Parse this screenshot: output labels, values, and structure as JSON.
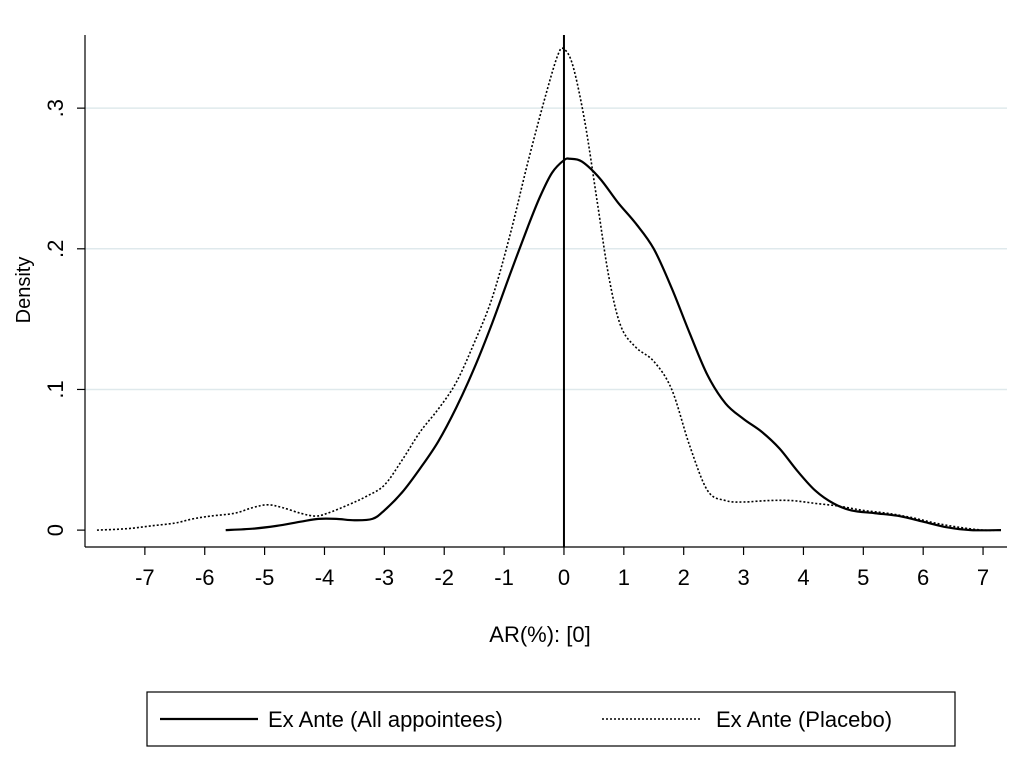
{
  "chart_data": {
    "type": "line",
    "title": "",
    "xlabel": "AR(%): [0]",
    "ylabel": "Density",
    "xlim": [
      -8.0,
      7.4
    ],
    "ylim": [
      -0.012,
      0.352
    ],
    "x_ticks": [
      -7,
      -6,
      -5,
      -4,
      -3,
      -2,
      -1,
      0,
      1,
      2,
      3,
      4,
      5,
      6,
      7
    ],
    "x_tick_labels": [
      "-7",
      "-6",
      "-5",
      "-4",
      "-3",
      "-2",
      "-1",
      "0",
      "1",
      "2",
      "3",
      "4",
      "5",
      "6",
      "7"
    ],
    "y_ticks": [
      0,
      0.1,
      0.2,
      0.3
    ],
    "y_tick_labels": [
      "0",
      ".1",
      ".2",
      ".3"
    ],
    "grid": "horizontal",
    "reference_line_x": 0,
    "legend_position": "bottom",
    "series": [
      {
        "name": "Ex Ante (All appointees)",
        "style": "solid",
        "color": "#000000",
        "points": [
          [
            -5.65,
            0.0
          ],
          [
            -5.2,
            0.001
          ],
          [
            -4.8,
            0.003
          ],
          [
            -4.4,
            0.006
          ],
          [
            -4.1,
            0.008
          ],
          [
            -3.8,
            0.008
          ],
          [
            -3.5,
            0.007
          ],
          [
            -3.2,
            0.008
          ],
          [
            -3.0,
            0.014
          ],
          [
            -2.7,
            0.027
          ],
          [
            -2.4,
            0.044
          ],
          [
            -2.1,
            0.063
          ],
          [
            -1.8,
            0.087
          ],
          [
            -1.5,
            0.115
          ],
          [
            -1.2,
            0.147
          ],
          [
            -0.9,
            0.182
          ],
          [
            -0.6,
            0.216
          ],
          [
            -0.4,
            0.237
          ],
          [
            -0.2,
            0.254
          ],
          [
            0.0,
            0.263
          ],
          [
            0.1,
            0.264
          ],
          [
            0.3,
            0.262
          ],
          [
            0.6,
            0.25
          ],
          [
            0.9,
            0.233
          ],
          [
            1.2,
            0.218
          ],
          [
            1.5,
            0.2
          ],
          [
            1.8,
            0.172
          ],
          [
            2.1,
            0.14
          ],
          [
            2.4,
            0.11
          ],
          [
            2.7,
            0.09
          ],
          [
            3.0,
            0.079
          ],
          [
            3.3,
            0.07
          ],
          [
            3.6,
            0.058
          ],
          [
            3.9,
            0.042
          ],
          [
            4.2,
            0.028
          ],
          [
            4.5,
            0.019
          ],
          [
            4.8,
            0.014
          ],
          [
            5.2,
            0.012
          ],
          [
            5.6,
            0.01
          ],
          [
            6.0,
            0.006
          ],
          [
            6.4,
            0.002
          ],
          [
            6.8,
            0.0
          ],
          [
            7.3,
            0.0
          ]
        ]
      },
      {
        "name": "Ex Ante (Placebo)",
        "style": "dotted",
        "color": "#000000",
        "points": [
          [
            -7.8,
            0.0
          ],
          [
            -7.3,
            0.001
          ],
          [
            -6.9,
            0.003
          ],
          [
            -6.5,
            0.005
          ],
          [
            -6.2,
            0.008
          ],
          [
            -5.9,
            0.01
          ],
          [
            -5.5,
            0.012
          ],
          [
            -5.2,
            0.016
          ],
          [
            -4.95,
            0.018
          ],
          [
            -4.7,
            0.016
          ],
          [
            -4.4,
            0.012
          ],
          [
            -4.15,
            0.01
          ],
          [
            -3.95,
            0.012
          ],
          [
            -3.6,
            0.018
          ],
          [
            -3.3,
            0.024
          ],
          [
            -3.0,
            0.032
          ],
          [
            -2.7,
            0.05
          ],
          [
            -2.4,
            0.07
          ],
          [
            -2.1,
            0.086
          ],
          [
            -1.8,
            0.105
          ],
          [
            -1.5,
            0.133
          ],
          [
            -1.2,
            0.165
          ],
          [
            -0.9,
            0.21
          ],
          [
            -0.6,
            0.262
          ],
          [
            -0.3,
            0.31
          ],
          [
            -0.1,
            0.338
          ],
          [
            0.0,
            0.342
          ],
          [
            0.15,
            0.33
          ],
          [
            0.35,
            0.29
          ],
          [
            0.55,
            0.235
          ],
          [
            0.75,
            0.18
          ],
          [
            0.95,
            0.145
          ],
          [
            1.2,
            0.13
          ],
          [
            1.5,
            0.12
          ],
          [
            1.8,
            0.1
          ],
          [
            2.1,
            0.06
          ],
          [
            2.4,
            0.028
          ],
          [
            2.7,
            0.021
          ],
          [
            3.0,
            0.02
          ],
          [
            3.4,
            0.021
          ],
          [
            3.8,
            0.021
          ],
          [
            4.2,
            0.019
          ],
          [
            4.6,
            0.017
          ],
          [
            5.0,
            0.014
          ],
          [
            5.4,
            0.012
          ],
          [
            5.8,
            0.009
          ],
          [
            6.2,
            0.005
          ],
          [
            6.6,
            0.002
          ],
          [
            7.0,
            0.0
          ],
          [
            7.3,
            0.0
          ]
        ]
      }
    ]
  }
}
